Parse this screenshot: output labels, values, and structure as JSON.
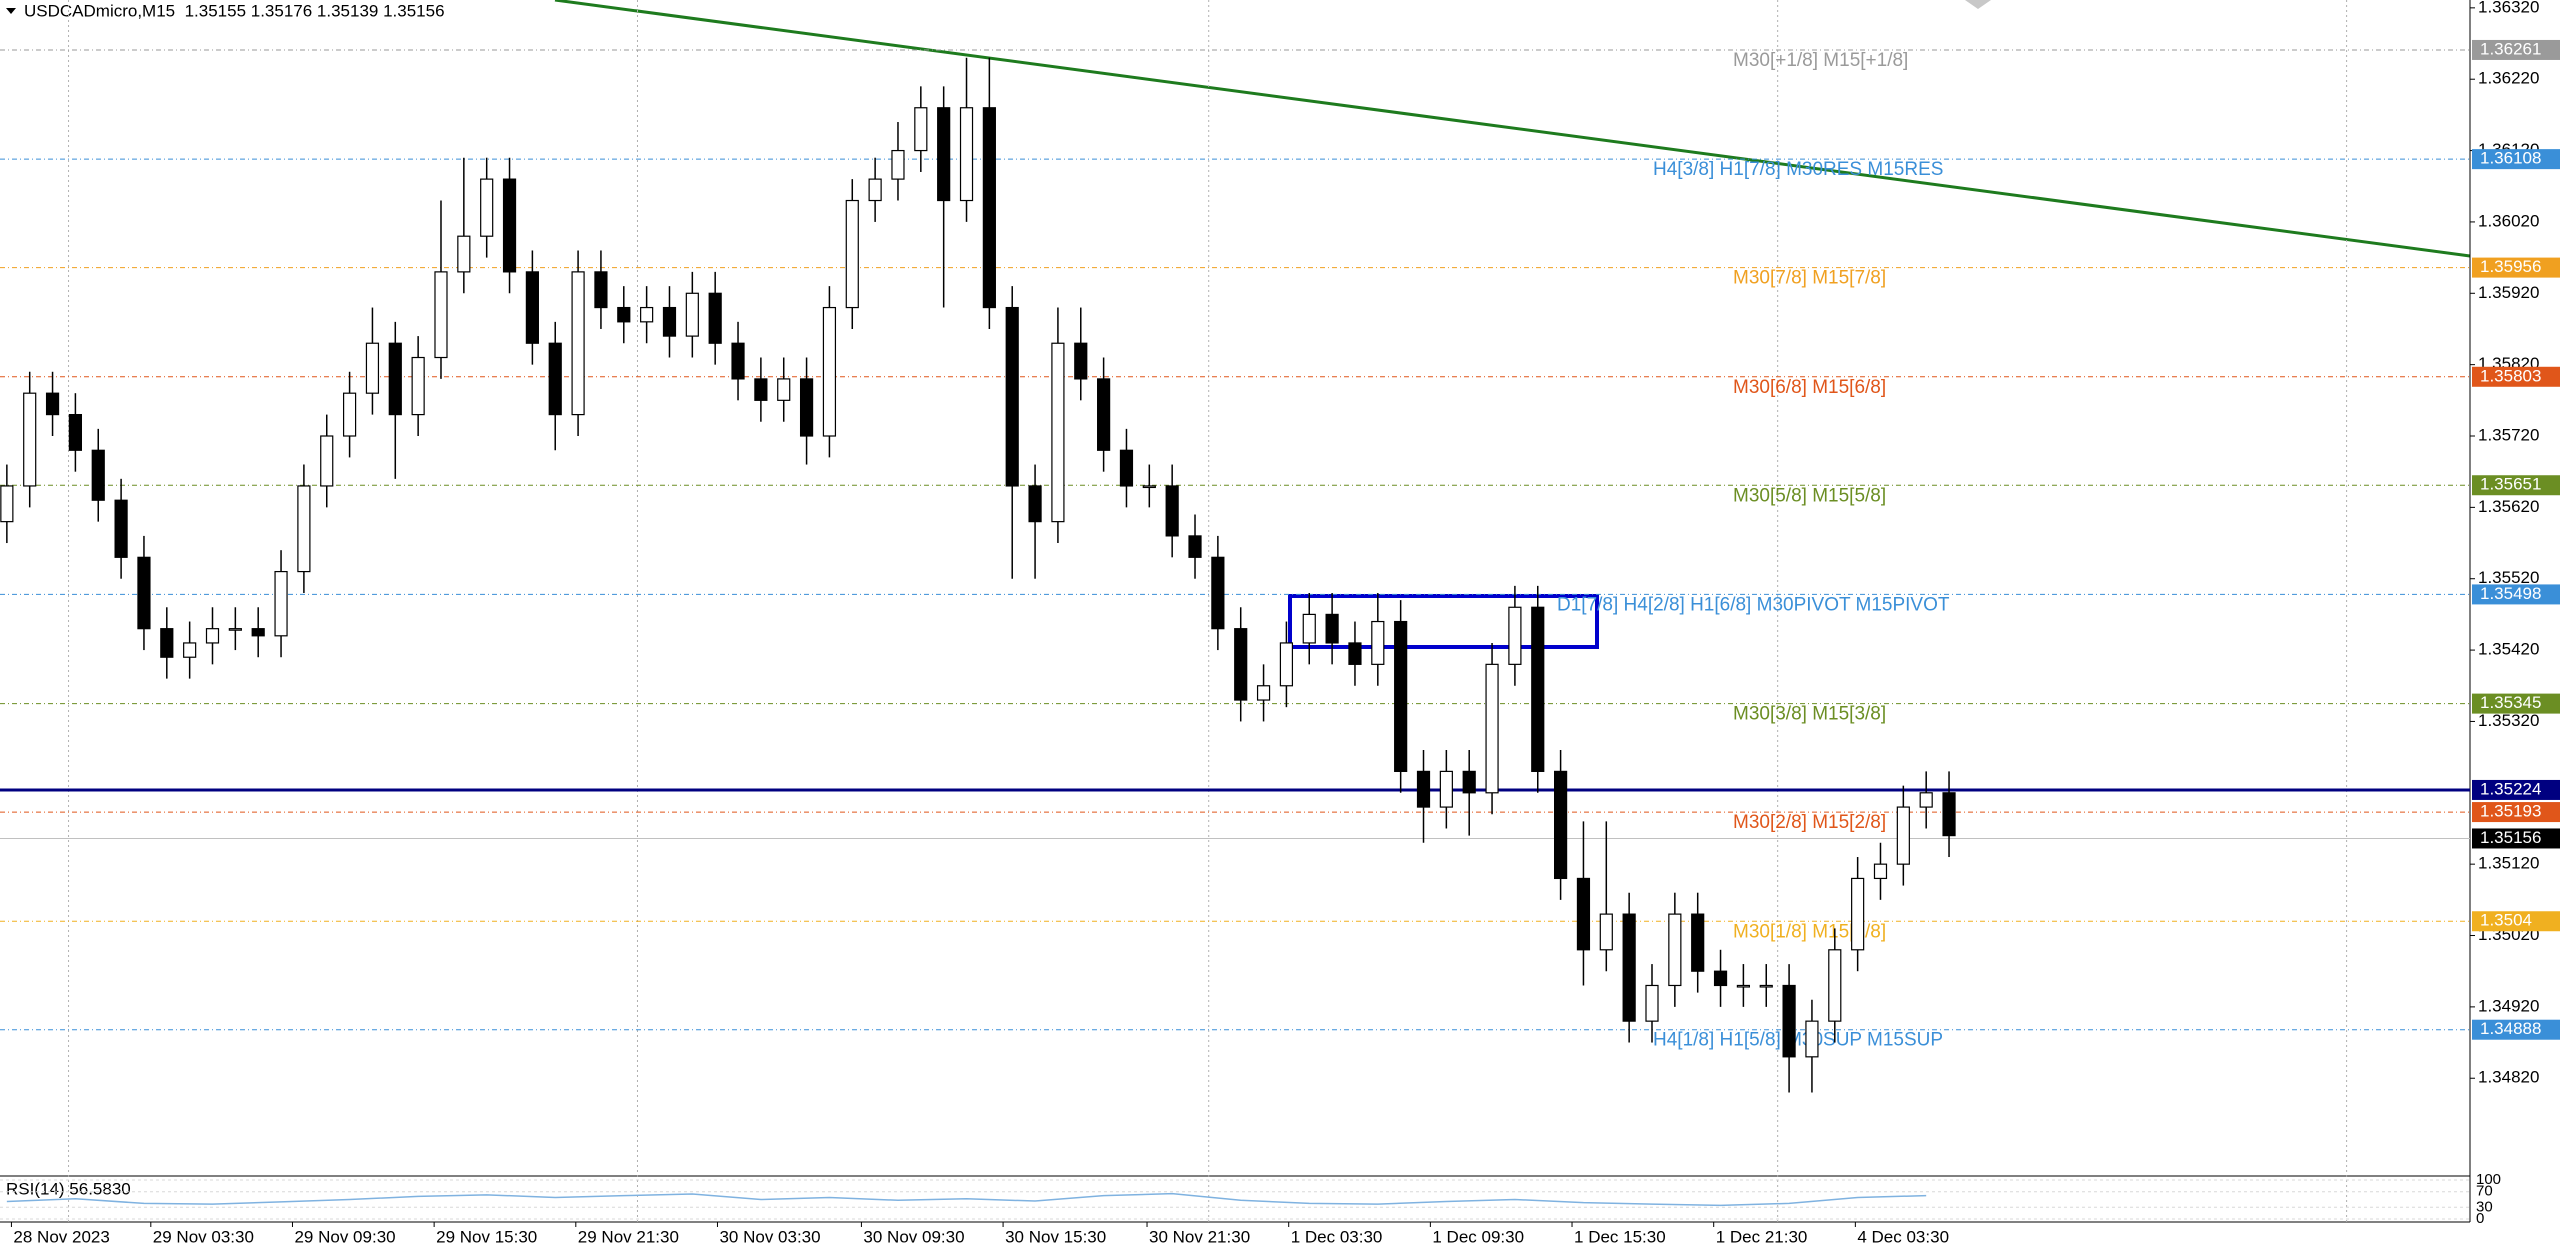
{
  "chart_data": {
    "type": "candlestick",
    "header": "USDCADmicro,M15  1.35155 1.35176 1.35139 1.35156",
    "open": [
      1.356,
      1.3565,
      1.3578,
      1.3575,
      1.357,
      1.3563,
      1.3555,
      1.3545,
      1.3541,
      1.3543,
      1.3545,
      1.3545,
      1.3544,
      1.3553,
      1.3565,
      1.3572,
      1.3578,
      1.3585,
      1.3575,
      1.3583,
      1.3595,
      1.36,
      1.3608,
      1.3595,
      1.3585,
      1.3575,
      1.3595,
      1.359,
      1.3588,
      1.359,
      1.3586,
      1.3592,
      1.3585,
      1.358,
      1.3577,
      1.358,
      1.3572,
      1.359,
      1.3605,
      1.3608,
      1.3612,
      1.3618,
      1.3605,
      1.3618,
      1.359,
      1.3565,
      1.356,
      1.3585,
      1.358,
      1.357,
      1.3565,
      1.3565,
      1.3558,
      1.3555,
      1.3545,
      1.3535,
      1.3537,
      1.3543,
      1.3547,
      1.3543,
      1.354,
      1.3546,
      1.3525,
      1.352,
      1.3525,
      1.3522,
      1.354,
      1.3548,
      1.3525,
      1.351,
      1.35,
      1.3505,
      1.349,
      1.3495,
      1.3505,
      1.3497,
      1.3495,
      1.3495,
      1.3495,
      1.3485,
      1.349,
      1.35,
      1.351,
      1.3512,
      1.352,
      1.3522
    ],
    "high": [
      1.3568,
      1.3581,
      1.3581,
      1.3578,
      1.3573,
      1.3566,
      1.3558,
      1.3548,
      1.3546,
      1.3548,
      1.3548,
      1.3548,
      1.3556,
      1.3568,
      1.3575,
      1.3581,
      1.359,
      1.3588,
      1.3586,
      1.3605,
      1.3611,
      1.3611,
      1.3611,
      1.3598,
      1.3588,
      1.3598,
      1.3598,
      1.3593,
      1.3593,
      1.3593,
      1.3595,
      1.3595,
      1.3588,
      1.3583,
      1.3583,
      1.3583,
      1.3593,
      1.3608,
      1.3611,
      1.3616,
      1.3621,
      1.3621,
      1.3625,
      1.3625,
      1.3593,
      1.3568,
      1.359,
      1.359,
      1.3583,
      1.3573,
      1.3568,
      1.3568,
      1.3561,
      1.3558,
      1.3548,
      1.354,
      1.3546,
      1.355,
      1.355,
      1.3546,
      1.355,
      1.3549,
      1.3528,
      1.3528,
      1.3528,
      1.3543,
      1.3551,
      1.3551,
      1.3528,
      1.3518,
      1.3518,
      1.3508,
      1.3498,
      1.3508,
      1.3508,
      1.35,
      1.3498,
      1.3498,
      1.3498,
      1.3493,
      1.3503,
      1.3513,
      1.3515,
      1.3523,
      1.3525,
      1.3525
    ],
    "low": [
      1.3557,
      1.3562,
      1.3572,
      1.3567,
      1.356,
      1.3552,
      1.3542,
      1.3538,
      1.3538,
      1.354,
      1.3542,
      1.3541,
      1.3541,
      1.355,
      1.3562,
      1.3569,
      1.3575,
      1.3566,
      1.3572,
      1.358,
      1.3592,
      1.3597,
      1.3592,
      1.3582,
      1.357,
      1.3572,
      1.3587,
      1.3585,
      1.3585,
      1.3583,
      1.3583,
      1.3582,
      1.3577,
      1.3574,
      1.3574,
      1.3568,
      1.3569,
      1.3587,
      1.3602,
      1.3605,
      1.3609,
      1.359,
      1.3602,
      1.3587,
      1.3552,
      1.3552,
      1.3557,
      1.3577,
      1.3567,
      1.3562,
      1.3562,
      1.3555,
      1.3552,
      1.3542,
      1.3532,
      1.3532,
      1.3534,
      1.354,
      1.354,
      1.3537,
      1.3537,
      1.3522,
      1.3515,
      1.3517,
      1.3516,
      1.3519,
      1.3537,
      1.3522,
      1.3507,
      1.3495,
      1.3497,
      1.3487,
      1.3487,
      1.3492,
      1.3494,
      1.3492,
      1.3492,
      1.3492,
      1.348,
      1.348,
      1.3487,
      1.3497,
      1.3507,
      1.3509,
      1.3517,
      1.3513
    ],
    "close": [
      1.3565,
      1.3578,
      1.3575,
      1.357,
      1.3563,
      1.3555,
      1.3545,
      1.3541,
      1.3543,
      1.3545,
      1.3545,
      1.3544,
      1.3553,
      1.3565,
      1.3572,
      1.3578,
      1.3585,
      1.3575,
      1.3583,
      1.3595,
      1.36,
      1.3608,
      1.3595,
      1.3585,
      1.3575,
      1.3595,
      1.359,
      1.3588,
      1.359,
      1.3586,
      1.3592,
      1.3585,
      1.358,
      1.3577,
      1.358,
      1.3572,
      1.359,
      1.3605,
      1.3608,
      1.3612,
      1.3618,
      1.3605,
      1.3618,
      1.359,
      1.3565,
      1.356,
      1.3585,
      1.358,
      1.357,
      1.3565,
      1.3565,
      1.3558,
      1.3555,
      1.3545,
      1.3535,
      1.3537,
      1.3543,
      1.3547,
      1.3543,
      1.354,
      1.3546,
      1.3525,
      1.352,
      1.3525,
      1.3522,
      1.354,
      1.3548,
      1.3525,
      1.351,
      1.35,
      1.3505,
      1.349,
      1.3495,
      1.3505,
      1.3497,
      1.3495,
      1.3495,
      1.3495,
      1.3485,
      1.349,
      1.35,
      1.351,
      1.3512,
      1.352,
      1.3522,
      1.3516
    ],
    "xlim": [
      -0.3,
      107.8
    ],
    "xticks": [
      {
        "value": 0.2,
        "label": "28 Nov 2023"
      },
      {
        "value": 6.3,
        "label": "29 Nov 03:30"
      },
      {
        "value": 12.5,
        "label": "29 Nov 09:30"
      },
      {
        "value": 18.7,
        "label": "29 Nov 15:30"
      },
      {
        "value": 24.9,
        "label": "29 Nov 21:30"
      },
      {
        "value": 31.1,
        "label": "30 Nov 03:30"
      },
      {
        "value": 37.4,
        "label": "30 Nov 09:30"
      },
      {
        "value": 43.6,
        "label": "30 Nov 15:30"
      },
      {
        "value": 49.9,
        "label": "30 Nov 21:30"
      },
      {
        "value": 56.1,
        "label": "1 Dec 03:30"
      },
      {
        "value": 62.3,
        "label": "1 Dec 09:30"
      },
      {
        "value": 68.5,
        "label": "1 Dec 15:30"
      },
      {
        "value": 74.7,
        "label": "1 Dec 21:30"
      },
      {
        "value": 80.9,
        "label": "4 Dec 03:30"
      }
    ],
    "xgrid": [
      2.7,
      27.6,
      52.6,
      77.5,
      102.4
    ],
    "ylim": [
      1.34683,
      1.36331
    ],
    "yticks": [
      {
        "value": 1.3632,
        "label": "1.36320"
      },
      {
        "value": 1.3622,
        "label": "1.36220"
      },
      {
        "value": 1.3612,
        "label": "1.36120"
      },
      {
        "value": 1.3602,
        "label": "1.36020"
      },
      {
        "value": 1.3592,
        "label": "1.35920"
      },
      {
        "value": 1.3582,
        "label": "1.35820"
      },
      {
        "value": 1.3572,
        "label": "1.35720"
      },
      {
        "value": 1.3562,
        "label": "1.35620"
      },
      {
        "value": 1.3552,
        "label": "1.35520"
      },
      {
        "value": 1.3542,
        "label": "1.35420"
      },
      {
        "value": 1.3532,
        "label": "1.35320"
      },
      {
        "value": 1.3512,
        "label": "1.35120"
      },
      {
        "value": 1.3502,
        "label": "1.35020"
      },
      {
        "value": 1.3492,
        "label": "1.34920"
      },
      {
        "value": 1.3482,
        "label": "1.34820"
      }
    ],
    "levels": [
      {
        "value": 1.36261,
        "text": "M30[+1/8] M15[+1/8]",
        "color": "#9a9a9a"
      },
      {
        "value": 1.36108,
        "text": "H4[3/8] H1[7/8] M30RES M15RES",
        "color": "#3a8fd8"
      },
      {
        "value": 1.35956,
        "text": "M30[7/8] M15[7/8]",
        "color": "#f0a020"
      },
      {
        "value": 1.35803,
        "text": "M30[6/8] M15[6/8]",
        "color": "#e0561a"
      },
      {
        "value": 1.35651,
        "text": "M30[5/8] M15[5/8]",
        "color": "#6b8e23"
      },
      {
        "value": 1.35498,
        "text": "D1[7/8] H4[2/8] H1[6/8] M30PIVOT M15PIVOT",
        "color": "#3a8fd8"
      },
      {
        "value": 1.35345,
        "text": "M30[3/8] M15[3/8]",
        "color": "#6b8e23"
      },
      {
        "value": 1.35224,
        "color": "#000080"
      },
      {
        "value": 1.35193,
        "text": "M30[2/8] M15[2/8]",
        "color": "#e0561a"
      },
      {
        "value": 1.35156,
        "color": "#000000"
      },
      {
        "value": 1.3504,
        "text": "M30[1/8] M15[1/8]",
        "color": "#f0b020"
      },
      {
        "value": 1.34888,
        "text": "H4[1/8] H1[5/8] M30SUP M15SUP",
        "color": "#3a8fd8"
      }
    ],
    "rsi": {
      "label": "RSI(14) 56.5830",
      "color": "#7fb2e0",
      "x": [
        0,
        3,
        6,
        9,
        12,
        15,
        18,
        21,
        24,
        27,
        30,
        33,
        36,
        39,
        42,
        45,
        48,
        51,
        54,
        57,
        60,
        63,
        66,
        69,
        72,
        75,
        78,
        81,
        84
      ],
      "values": [
        45,
        52,
        40,
        38,
        44,
        50,
        58,
        62,
        55,
        60,
        64,
        50,
        55,
        48,
        52,
        46,
        60,
        65,
        48,
        40,
        38,
        45,
        50,
        42,
        38,
        35,
        40,
        55,
        60
      ],
      "ylim": [
        0,
        100
      ],
      "yticks": [
        100,
        70,
        30,
        0
      ]
    }
  }
}
